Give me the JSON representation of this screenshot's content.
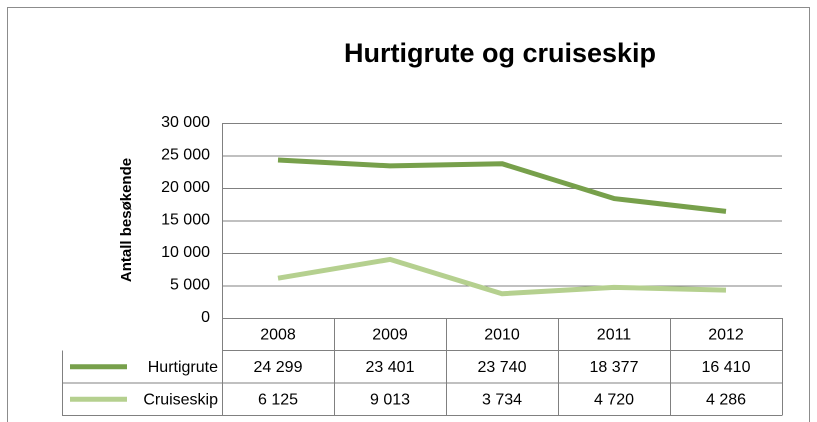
{
  "chart_data": {
    "type": "line",
    "title": "Hurtigrute og cruiseskip",
    "y_label": "Antall besøkende",
    "categories": [
      "2008",
      "2009",
      "2010",
      "2011",
      "2012"
    ],
    "series": [
      {
        "name": "Hurtigrute",
        "color": "#77a04b",
        "values": [
          24299,
          23401,
          23740,
          18377,
          16410
        ],
        "value_labels": [
          "24 299",
          "23 401",
          "23 740",
          "18 377",
          "16 410"
        ]
      },
      {
        "name": "Cruiseskip",
        "color": "#b5d08f",
        "values": [
          6125,
          9013,
          3734,
          4720,
          4286
        ],
        "value_labels": [
          "6 125",
          "9 013",
          "3 734",
          "4 720",
          "4 286"
        ]
      }
    ],
    "ylim": [
      0,
      30000
    ],
    "yticks": [
      0,
      {
        "value": 5000,
        "label": "5 000"
      },
      {
        "value": 10000,
        "label": "10 000"
      },
      {
        "value": 15000,
        "label": "15 000"
      },
      {
        "value": 20000,
        "label": "20 000"
      },
      {
        "value": 25000,
        "label": "25 000"
      },
      {
        "value": 30000,
        "label": "30 000"
      }
    ],
    "grid": true,
    "data_table": true
  }
}
